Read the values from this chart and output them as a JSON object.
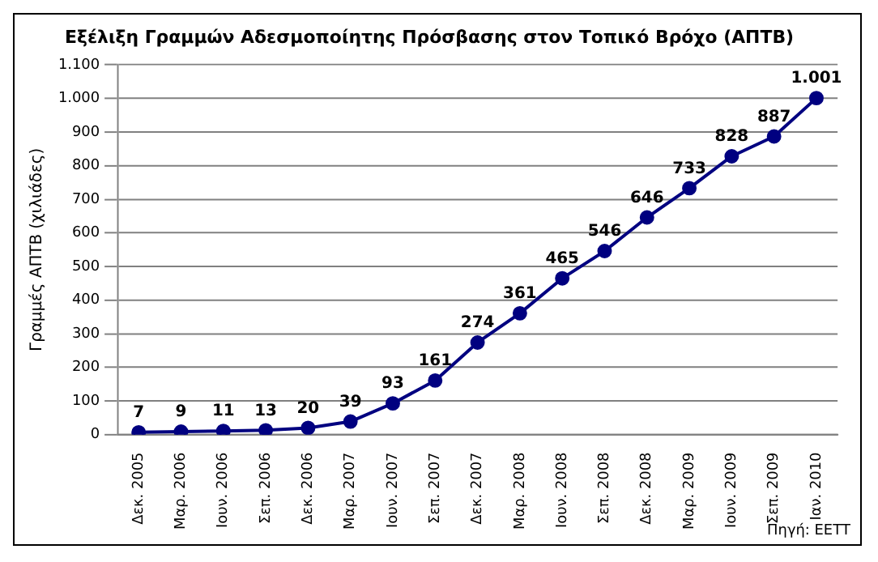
{
  "chart_data": {
    "type": "line",
    "title": "Εξέλιξη Γραμμών Αδεσμοποίητης Πρόσβασης στον Τοπικό Βρόχο (ΑΠΤΒ)",
    "ylabel": "Γραμμές ΑΠΤΒ (χιλιάδες)",
    "categories": [
      "Δεκ. 2005",
      "Μαρ. 2006",
      "Ιουν. 2006",
      "Σεπ. 2006",
      "Δεκ. 2006",
      "Μαρ. 2007",
      "Ιουν. 2007",
      "Σεπ. 2007",
      "Δεκ. 2007",
      "Μαρ. 2008",
      "Ιουν. 2008",
      "Σεπ. 2008",
      "Δεκ. 2008",
      "Μαρ. 2009",
      "Ιουν. 2009",
      "Σεπ. 2009",
      "Ιαν. 2010"
    ],
    "series": [
      {
        "color": "#000080",
        "values": [
          7,
          9,
          11,
          13,
          20,
          39,
          93,
          161,
          274,
          361,
          465,
          546,
          646,
          733,
          828,
          887,
          1001
        ],
        "value_labels": [
          "7",
          "9",
          "11",
          "13",
          "20",
          "39",
          "93",
          "161",
          "274",
          "361",
          "465",
          "546",
          "646",
          "733",
          "828",
          "887",
          "1.001"
        ]
      }
    ],
    "ylim": [
      0,
      1100
    ],
    "yticks": [
      0,
      100,
      200,
      300,
      400,
      500,
      600,
      700,
      800,
      900,
      {
        "value": 1000,
        "label": "1.000"
      },
      {
        "value": 1100,
        "label": "1.100"
      }
    ],
    "grid": "y",
    "legend": false,
    "marker": "circle",
    "line_style": "solid",
    "annotations": [
      "Πηγή: ΕΕΤΤ"
    ]
  }
}
